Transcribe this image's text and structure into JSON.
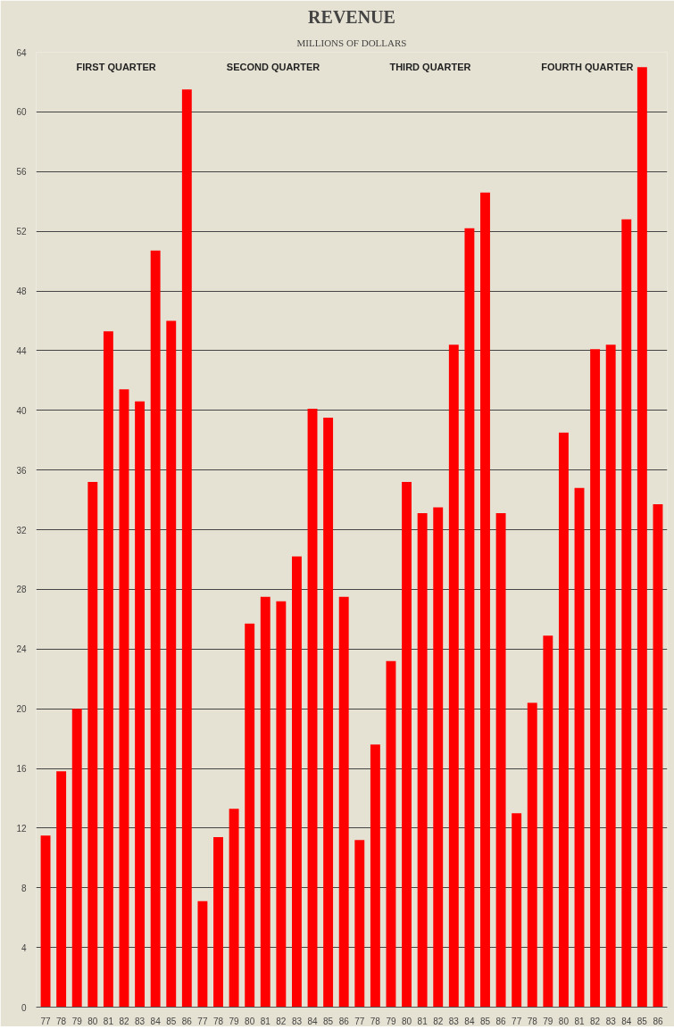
{
  "chart_data": {
    "type": "bar",
    "title": "REVENUE",
    "subtitle": "MILLIONS OF DOLLARS",
    "categories": [
      "77",
      "78",
      "79",
      "80",
      "81",
      "82",
      "83",
      "84",
      "85",
      "86",
      "77",
      "78",
      "79",
      "80",
      "81",
      "82",
      "83",
      "84",
      "85",
      "86",
      "77",
      "78",
      "79",
      "80",
      "81",
      "82",
      "83",
      "84",
      "85",
      "86",
      "77",
      "78",
      "79",
      "80",
      "81",
      "82",
      "83",
      "84",
      "85",
      "86"
    ],
    "values": [
      11.5,
      15.8,
      20.0,
      35.2,
      45.3,
      41.4,
      40.6,
      50.7,
      46.0,
      61.5,
      7.1,
      11.4,
      13.3,
      25.7,
      27.5,
      27.2,
      30.2,
      40.1,
      39.5,
      27.5,
      11.2,
      17.6,
      23.2,
      35.2,
      33.1,
      33.5,
      44.4,
      52.2,
      54.6,
      33.1,
      13.0,
      20.4,
      24.9,
      38.5,
      34.8,
      44.1,
      44.4,
      52.8,
      63.0,
      33.7
    ],
    "color": "#ff0000",
    "ylim": [
      0,
      64
    ],
    "yticks": [
      0,
      4,
      8,
      12,
      16,
      20,
      24,
      28,
      32,
      36,
      40,
      44,
      48,
      52,
      56,
      60,
      64
    ],
    "grid": "y",
    "annotations": [
      "FIRST QUARTER",
      "SECOND QUARTER",
      "THIRD QUARTER",
      "FOURTH QUARTER"
    ]
  }
}
